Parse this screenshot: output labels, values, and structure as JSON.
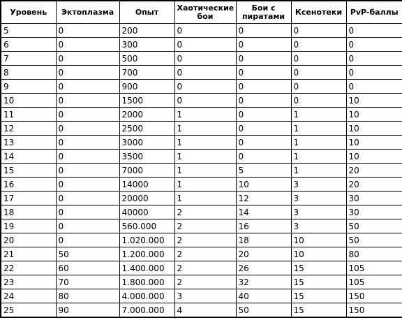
{
  "table": {
    "headers": [
      "Уровень",
      "Эктоплазма",
      "Опыт",
      "Хаотические бои",
      "Бои с пиратами",
      "Ксенотеки",
      "PvP-баллы"
    ],
    "rows": [
      [
        "5",
        "0",
        "200",
        "0",
        "0",
        "0",
        "0"
      ],
      [
        "6",
        "0",
        "300",
        "0",
        "0",
        "0",
        "0"
      ],
      [
        "7",
        "0",
        "500",
        "0",
        "0",
        "0",
        "0"
      ],
      [
        "8",
        "0",
        "700",
        "0",
        "0",
        "0",
        "0"
      ],
      [
        "9",
        "0",
        "900",
        "0",
        "0",
        "0",
        "0"
      ],
      [
        "10",
        "0",
        "1500",
        "0",
        "0",
        "0",
        "10"
      ],
      [
        "11",
        "0",
        "2000",
        "1",
        "0",
        "1",
        "10"
      ],
      [
        "12",
        "0",
        "2500",
        "1",
        "0",
        "1",
        "10"
      ],
      [
        "13",
        "0",
        "3000",
        "1",
        "0",
        "1",
        "10"
      ],
      [
        "14",
        "0",
        "3500",
        "1",
        "0",
        "1",
        "10"
      ],
      [
        "15",
        "0",
        "7000",
        "1",
        "5",
        "1",
        "20"
      ],
      [
        "16",
        "0",
        "14000",
        "1",
        "10",
        "3",
        "20"
      ],
      [
        "17",
        "0",
        "20000",
        "1",
        "12",
        "3",
        "30"
      ],
      [
        "18",
        "0",
        "40000",
        "2",
        "14",
        "3",
        "30"
      ],
      [
        "19",
        "0",
        "560.000",
        "2",
        "16",
        "3",
        "50"
      ],
      [
        "20",
        "0",
        "1.020.000",
        "2",
        "18",
        "10",
        "50"
      ],
      [
        "21",
        "50",
        "1.200.000",
        "2",
        "20",
        "10",
        "80"
      ],
      [
        "22",
        "60",
        "1.400.000",
        "2",
        "26",
        "15",
        "105"
      ],
      [
        "23",
        "70",
        "1.800.000",
        "2",
        "32",
        "15",
        "105"
      ],
      [
        "24",
        "80",
        "4.000.000",
        "3",
        "40",
        "15",
        "150"
      ],
      [
        "25",
        "90",
        "7.000.000",
        "4",
        "50",
        "15",
        "150"
      ]
    ]
  }
}
